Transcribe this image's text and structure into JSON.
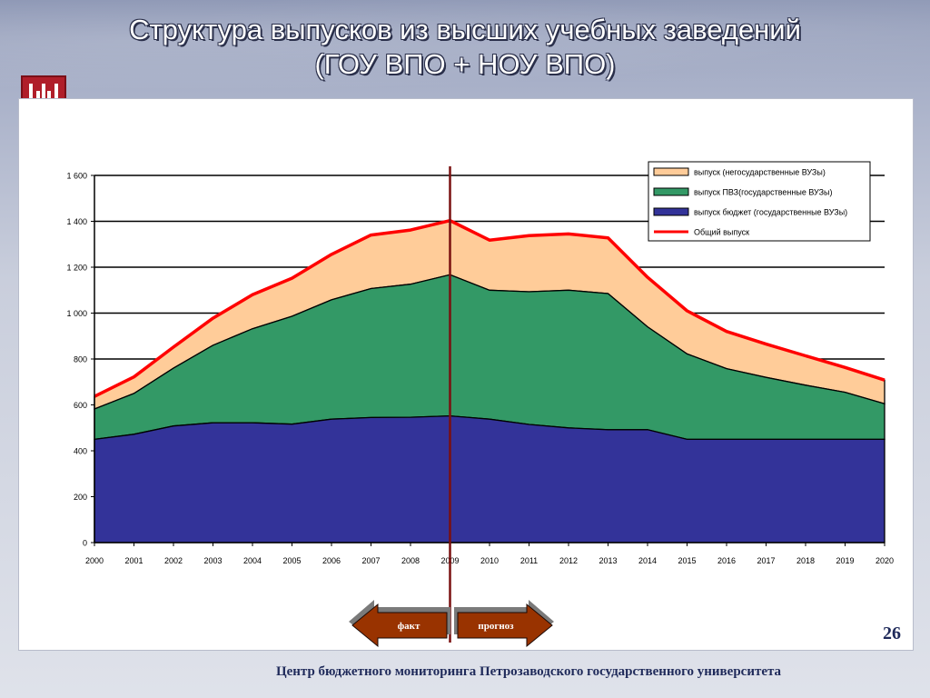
{
  "slide": {
    "title_line1": "Структура выпусков из высших учебных заведений",
    "title_line2": "(ГОУ ВПО + НОУ ВПО)",
    "page_number": "26",
    "footer": "Центр бюджетного мониторинга Петрозаводского государственного университета",
    "fact_label": "факт",
    "forecast_label": "прогноз",
    "colors": {
      "budget": "#333399",
      "pvz": "#339966",
      "nongov": "#ffcc99",
      "total": "#ff0000",
      "divider": "#7a1010",
      "arrow": "#993300"
    }
  },
  "chart_data": {
    "type": "area",
    "stacked": true,
    "x": [
      2000,
      2001,
      2002,
      2003,
      2004,
      2005,
      2006,
      2007,
      2008,
      2009,
      2010,
      2011,
      2012,
      2013,
      2014,
      2015,
      2016,
      2017,
      2018,
      2019,
      2020
    ],
    "ylim": [
      0,
      1600
    ],
    "yticks": [
      "0",
      "200",
      "400",
      "600",
      "800",
      "1 000",
      "1 200",
      "1 400",
      "1 600"
    ],
    "ytick_values": [
      0,
      200,
      400,
      600,
      800,
      1000,
      1200,
      1400,
      1600
    ],
    "grid": true,
    "legend_position": "top-right",
    "divider_year": 2009,
    "series": [
      {
        "name": "выпуск бюджет (государственные ВУЗы)",
        "kind": "area",
        "values": [
          450,
          472,
          508,
          522,
          522,
          516,
          538,
          545,
          546,
          552,
          538,
          515,
          500,
          492,
          492,
          450,
          450,
          450,
          450,
          450,
          450
        ]
      },
      {
        "name": "выпуск ПВЗ(государственные ВУЗы)",
        "kind": "area",
        "values": [
          132,
          178,
          252,
          338,
          410,
          470,
          520,
          562,
          580,
          615,
          562,
          578,
          600,
          593,
          448,
          372,
          308,
          270,
          236,
          205,
          155
        ]
      },
      {
        "name": "выпуск  (негосударственные ВУЗы)",
        "kind": "area",
        "values": [
          55,
          72,
          92,
          118,
          148,
          166,
          198,
          233,
          236,
          236,
          218,
          245,
          245,
          243,
          216,
          188,
          162,
          145,
          128,
          108,
          103
        ]
      },
      {
        "name": "Общий выпуск",
        "kind": "line",
        "values": [
          637,
          722,
          852,
          978,
          1080,
          1152,
          1256,
          1340,
          1362,
          1403,
          1318,
          1338,
          1345,
          1328,
          1156,
          1010,
          920,
          865,
          814,
          763,
          708
        ]
      }
    ]
  }
}
